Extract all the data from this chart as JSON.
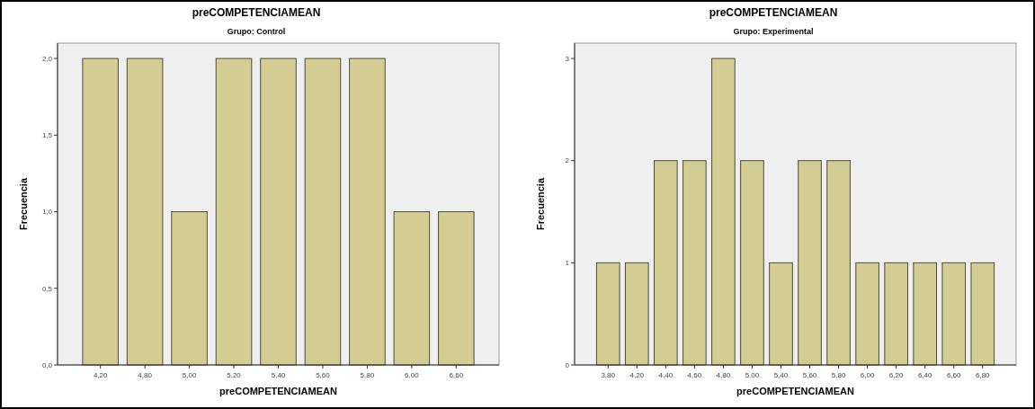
{
  "chart_data": [
    {
      "type": "bar",
      "title": "preCOMPETENCIAMEAN",
      "subtitle": "Grupo: Control",
      "xlabel": "preCOMPETENCIAMEAN",
      "ylabel": "Frecuencia",
      "categories": [
        "4,20",
        "4,80",
        "5,00",
        "5,20",
        "5,40",
        "5,60",
        "5,80",
        "6,00",
        "6,60"
      ],
      "values": [
        2,
        2,
        1,
        2,
        2,
        2,
        2,
        1,
        1
      ],
      "color": "#d3cd94",
      "ylim": [
        0,
        2.1
      ],
      "yticks": [
        {
          "value": 0,
          "label": "0,0"
        },
        {
          "value": 0.5,
          "label": "0,5"
        },
        {
          "value": 1,
          "label": "1,0"
        },
        {
          "value": 1.5,
          "label": "1,5"
        },
        {
          "value": 2,
          "label": "2,0"
        }
      ]
    },
    {
      "type": "bar",
      "title": "preCOMPETENCIAMEAN",
      "subtitle": "Grupo: Experimental",
      "xlabel": "preCOMPETENCIAMEAN",
      "ylabel": "Frecuencia",
      "categories": [
        "3,80",
        "4,20",
        "4,40",
        "4,60",
        "4,80",
        "5,00",
        "5,40",
        "5,60",
        "5,80",
        "6,00",
        "6,20",
        "6,40",
        "6,60",
        "6,80"
      ],
      "values": [
        1,
        1,
        2,
        2,
        3,
        2,
        1,
        2,
        2,
        1,
        1,
        1,
        1,
        1
      ],
      "color": "#d3cd94",
      "ylim": [
        0,
        3.15
      ],
      "yticks": [
        0,
        1,
        2,
        3
      ]
    }
  ]
}
